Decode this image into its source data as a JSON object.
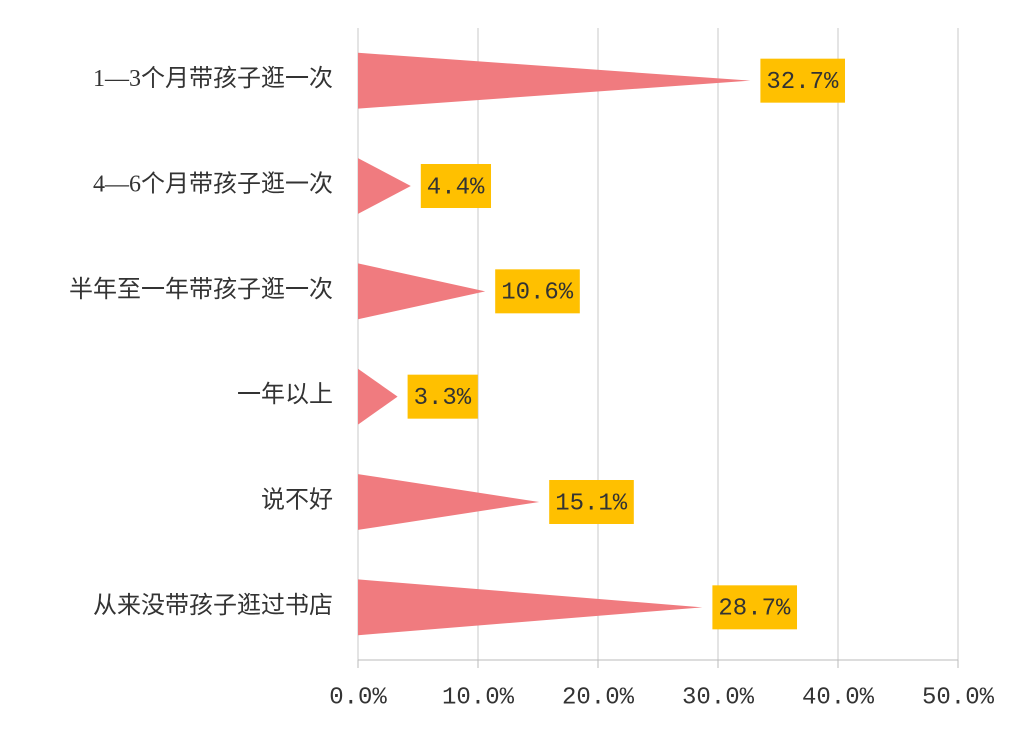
{
  "chart_data": {
    "type": "bar",
    "orientation": "horizontal",
    "categories": [
      "1—3个月带孩子逛一次",
      "4—6个月带孩子逛一次",
      "半年至一年带孩子逛一次",
      "一年以上",
      "说不好",
      "从来没带孩子逛过书店"
    ],
    "values": [
      32.7,
      4.4,
      10.6,
      3.3,
      15.1,
      28.7
    ],
    "value_labels": [
      "32.7%",
      "4.4%",
      "10.6%",
      "3.3%",
      "15.1%",
      "28.7%"
    ],
    "color": "#f07b7f",
    "label_color": "#ffc000",
    "xlim": [
      0,
      50
    ],
    "xticks": [
      {
        "value": 0,
        "label": "0.0%"
      },
      {
        "value": 10,
        "label": "10.0%"
      },
      {
        "value": 20,
        "label": "20.0%"
      },
      {
        "value": 30,
        "label": "30.0%"
      },
      {
        "value": 40,
        "label": "40.0%"
      },
      {
        "value": 50,
        "label": "50.0%"
      }
    ],
    "grid": true
  }
}
